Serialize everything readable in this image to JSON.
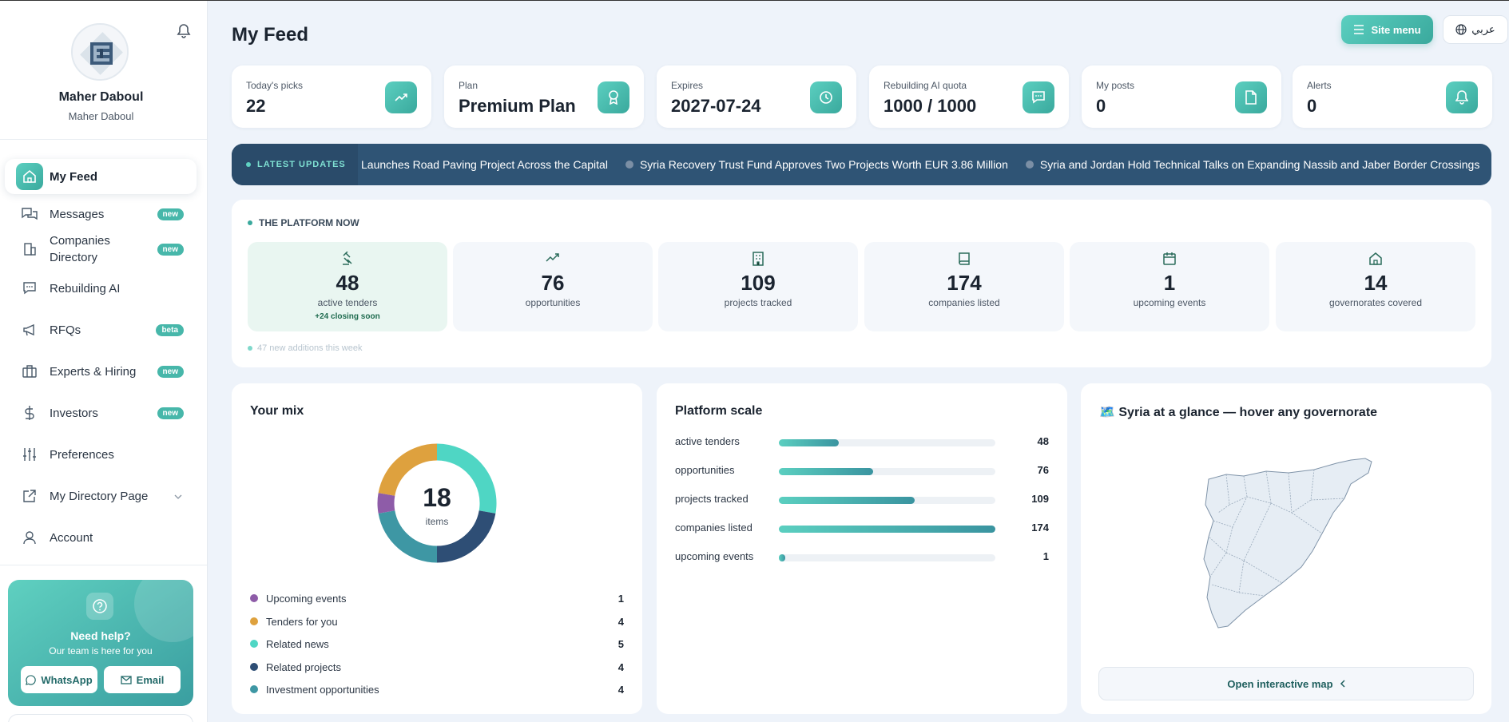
{
  "profile": {
    "name": "Maher Daboul",
    "subtitle": "Maher Daboul"
  },
  "nav": [
    {
      "label": "My Feed",
      "icon": "home-icon",
      "badge": "",
      "active": true
    },
    {
      "label": "Messages",
      "icon": "messages-icon",
      "badge": "new"
    },
    {
      "label": "Companies Directory",
      "icon": "building-icon",
      "badge": "new"
    },
    {
      "label": "Rebuilding AI",
      "icon": "chat-icon",
      "badge": ""
    },
    {
      "label": "RFQs",
      "icon": "megaphone-icon",
      "badge": "beta"
    },
    {
      "label": "Experts & Hiring",
      "icon": "briefcase-icon",
      "badge": "new"
    },
    {
      "label": "Investors",
      "icon": "dollar-icon",
      "badge": "new"
    },
    {
      "label": "Preferences",
      "icon": "sliders-icon",
      "badge": ""
    },
    {
      "label": "My Directory Page",
      "icon": "external-link-icon",
      "badge": ""
    },
    {
      "label": "Account",
      "icon": "user-icon",
      "badge": ""
    }
  ],
  "help": {
    "title": "Need help?",
    "subtitle": "Our team is here for you",
    "whatsapp": "WhatsApp",
    "email": "Email"
  },
  "header": {
    "title": "My Feed",
    "site_menu": "Site menu",
    "language": "عربي"
  },
  "stats": [
    {
      "label": "Today's picks",
      "value": "22",
      "icon": "trend-up-icon"
    },
    {
      "label": "Plan",
      "value": "Premium Plan",
      "icon": "award-icon"
    },
    {
      "label": "Expires",
      "value": "2027-07-24",
      "icon": "clock-icon"
    },
    {
      "label": "Rebuilding AI quota",
      "value": "1000 / 1000",
      "icon": "chat-icon"
    },
    {
      "label": "My posts",
      "value": "0",
      "icon": "document-icon"
    },
    {
      "label": "Alerts",
      "value": "0",
      "icon": "bell-icon"
    }
  ],
  "ticker": {
    "label": "LATEST UPDATES",
    "items": [
      "Launches Road Paving Project Across the Capital",
      "Syria Recovery Trust Fund Approves Two Projects Worth EUR 3.86 Million",
      "Syria and Jordan Hold Technical Talks on Expanding Nassib and Jaber Border Crossings"
    ]
  },
  "platform": {
    "title": "THE PLATFORM NOW",
    "cards": [
      {
        "value": "48",
        "label": "active tenders",
        "note": "+24 closing soon",
        "icon": "gavel-icon"
      },
      {
        "value": "76",
        "label": "opportunities",
        "note": "",
        "icon": "trend-up-icon"
      },
      {
        "value": "109",
        "label": "projects tracked",
        "note": "",
        "icon": "building-icon"
      },
      {
        "value": "174",
        "label": "companies listed",
        "note": "",
        "icon": "book-icon"
      },
      {
        "value": "1",
        "label": "upcoming events",
        "note": "",
        "icon": "calendar-icon"
      },
      {
        "value": "14",
        "label": "governorates covered",
        "note": "",
        "icon": "home-icon"
      }
    ],
    "footer": "47 new additions this week"
  },
  "mix": {
    "title": "Your mix",
    "total": "18",
    "total_label": "items",
    "legend": [
      {
        "label": "Upcoming events",
        "value": 1,
        "color": "#8e5ca8"
      },
      {
        "label": "Tenders for you",
        "value": 4,
        "color": "#dea13e"
      },
      {
        "label": "Related news",
        "value": 5,
        "color": "#4fd6c4"
      },
      {
        "label": "Related projects",
        "value": 4,
        "color": "#2e4e75"
      },
      {
        "label": "Investment opportunities",
        "value": 4,
        "color": "#3e97a4"
      }
    ]
  },
  "scale": {
    "title": "Platform scale",
    "max": 174,
    "rows": [
      {
        "label": "active tenders",
        "value": 48
      },
      {
        "label": "opportunities",
        "value": 76
      },
      {
        "label": "projects tracked",
        "value": 109
      },
      {
        "label": "companies listed",
        "value": 174
      },
      {
        "label": "upcoming events",
        "value": 1
      }
    ]
  },
  "map": {
    "title": "🗺️ Syria at a glance — hover any governorate",
    "button": "Open interactive map"
  },
  "chart_data": [
    {
      "type": "pie",
      "categories": [
        "Upcoming events",
        "Tenders for you",
        "Related news",
        "Related projects",
        "Investment opportunities"
      ],
      "values": [
        1,
        4,
        5,
        4,
        4
      ],
      "title": "Your mix"
    },
    {
      "type": "bar",
      "categories": [
        "active tenders",
        "opportunities",
        "projects tracked",
        "companies listed",
        "upcoming events"
      ],
      "values": [
        48,
        76,
        109,
        174,
        1
      ],
      "title": "Platform scale"
    }
  ]
}
